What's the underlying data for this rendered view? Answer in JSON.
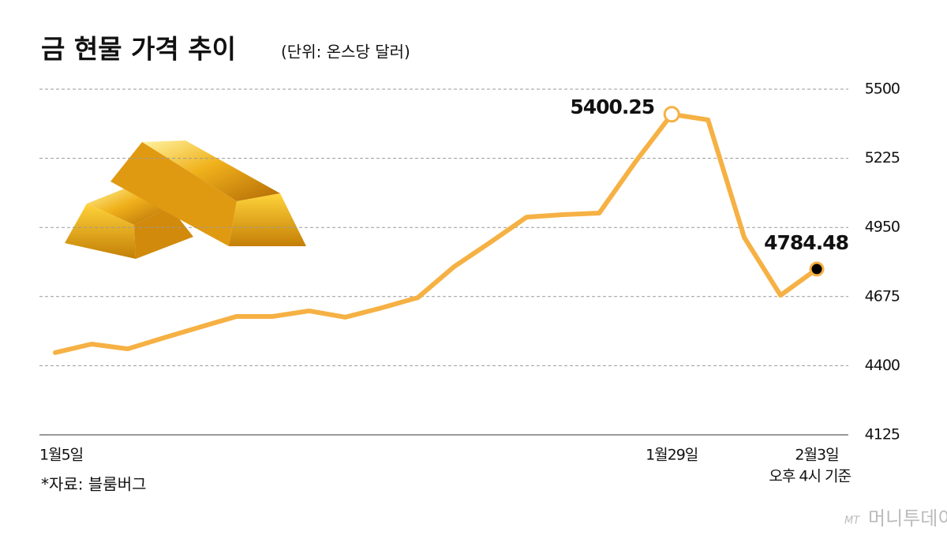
{
  "chart_data": {
    "type": "line",
    "title": "금 현물 가격 추이",
    "subtitle": "(단위: 온스당 달러)",
    "categories": [
      "1월5일",
      null,
      null,
      null,
      null,
      null,
      null,
      null,
      null,
      null,
      null,
      null,
      null,
      null,
      null,
      null,
      null,
      "1월29일",
      null,
      null,
      null,
      "2월3일"
    ],
    "time_note": "오후 4시 기준",
    "series": [
      {
        "name": "금 현물 가격",
        "color": "#f6b144",
        "values": [
          4452,
          4486,
          4467,
          4511,
          4554,
          4596,
          4596,
          4618,
          4593,
          4630,
          4671,
          4794,
          4891,
          4991,
          5001,
          5007,
          5211,
          5400.25,
          5378,
          4910,
          4680,
          4784.48
        ]
      }
    ],
    "ylim": [
      4125,
      5500
    ],
    "yticks": [
      4125,
      4400,
      4675,
      4950,
      5225,
      5500
    ],
    "grid": true,
    "source": "*자료: 블룸버그",
    "watermark": {
      "logo": "MT",
      "name": "머니투데이"
    }
  }
}
